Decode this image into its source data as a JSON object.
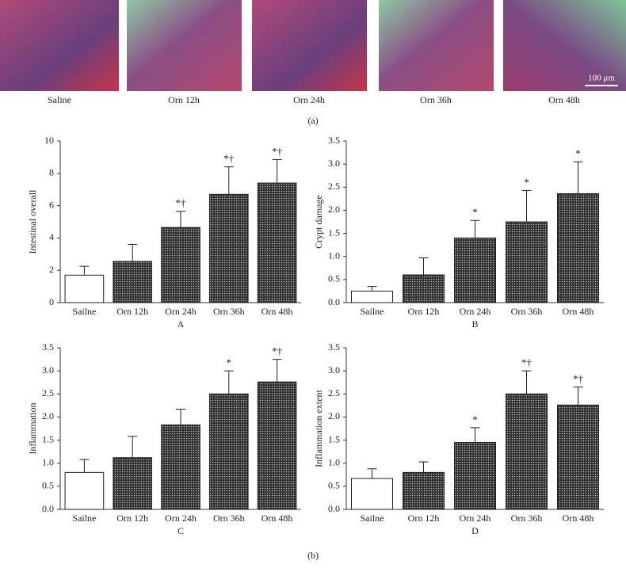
{
  "panel_a": {
    "labels": [
      "Saline",
      "Orn 12h",
      "Orn 24h",
      "Orn 36h",
      "Orn 48h"
    ],
    "scale_bar": "100 μm",
    "caption": "(a)"
  },
  "panel_b_caption": "(b)",
  "chart_data": [
    {
      "type": "bar",
      "xlabel": "A",
      "ylabel": "Intestinal overall",
      "categories": [
        "Sailne",
        "Orn 12h",
        "Orn 24h",
        "Orn 36h",
        "Orn 48h"
      ],
      "values": [
        1.7,
        2.55,
        4.65,
        6.7,
        7.4
      ],
      "errors": [
        0.55,
        1.05,
        1.0,
        1.7,
        1.45
      ],
      "bar_labels": [
        null,
        null,
        "*†",
        "*†",
        "*†"
      ],
      "ylim": [
        0,
        10
      ],
      "yticks": [
        0,
        2,
        4,
        6,
        8,
        10
      ]
    },
    {
      "type": "bar",
      "xlabel": "B",
      "ylabel": "Crypt damage",
      "categories": [
        "Sailne",
        "Orn 12h",
        "Orn 24h",
        "Orn 36h",
        "Orn 48h"
      ],
      "values": [
        0.25,
        0.6,
        1.4,
        1.75,
        2.36
      ],
      "errors": [
        0.1,
        0.37,
        0.38,
        0.68,
        0.69
      ],
      "bar_labels": [
        null,
        null,
        "*",
        "*",
        "*"
      ],
      "ylim": [
        0,
        3.5
      ],
      "yticks": [
        {
          "value": 0,
          "label": "0.0"
        },
        {
          "value": 0.5,
          "label": "0.5"
        },
        {
          "value": 1,
          "label": "1.0"
        },
        {
          "value": 1.5,
          "label": "1.5"
        },
        {
          "value": 2,
          "label": "2.0"
        },
        {
          "value": 2.5,
          "label": "2.5"
        },
        {
          "value": 3,
          "label": "3.0"
        },
        {
          "value": 3.5,
          "label": "3.5"
        }
      ]
    },
    {
      "type": "bar",
      "xlabel": "C",
      "ylabel": "Inflammation",
      "categories": [
        "Sailne",
        "Orn 12h",
        "Orn 24h",
        "Orn 36h",
        "Orn 48h"
      ],
      "values": [
        0.8,
        1.12,
        1.83,
        2.5,
        2.76
      ],
      "errors": [
        0.28,
        0.46,
        0.34,
        0.5,
        0.49
      ],
      "bar_labels": [
        null,
        null,
        null,
        "*",
        "*†"
      ],
      "ylim": [
        0,
        3.5
      ],
      "yticks": [
        {
          "value": 0,
          "label": "0.0"
        },
        {
          "value": 0.5,
          "label": "0.5"
        },
        {
          "value": 1,
          "label": "1.0"
        },
        {
          "value": 1.5,
          "label": "1.5"
        },
        {
          "value": 2,
          "label": "2.0"
        },
        {
          "value": 2.5,
          "label": "2.5"
        },
        {
          "value": 3,
          "label": "3.0"
        },
        {
          "value": 3.5,
          "label": "3.5"
        }
      ]
    },
    {
      "type": "bar",
      "xlabel": "D",
      "ylabel": "Inflammation extent",
      "categories": [
        "Sailne",
        "Orn 12h",
        "Orn 24h",
        "Orn 36h",
        "Orn 48h"
      ],
      "values": [
        0.67,
        0.8,
        1.45,
        2.5,
        2.26
      ],
      "errors": [
        0.21,
        0.23,
        0.32,
        0.5,
        0.39
      ],
      "bar_labels": [
        null,
        null,
        "*",
        "*†",
        "*†"
      ],
      "ylim": [
        0,
        3.5
      ],
      "yticks": [
        {
          "value": 0,
          "label": "0.0"
        },
        {
          "value": 0.5,
          "label": "0.5"
        },
        {
          "value": 1,
          "label": "1.0"
        },
        {
          "value": 1.5,
          "label": "1.5"
        },
        {
          "value": 2,
          "label": "2.0"
        },
        {
          "value": 2.5,
          "label": "2.5"
        },
        {
          "value": 3,
          "label": "3.0"
        },
        {
          "value": 3.5,
          "label": "3.5"
        }
      ]
    }
  ]
}
